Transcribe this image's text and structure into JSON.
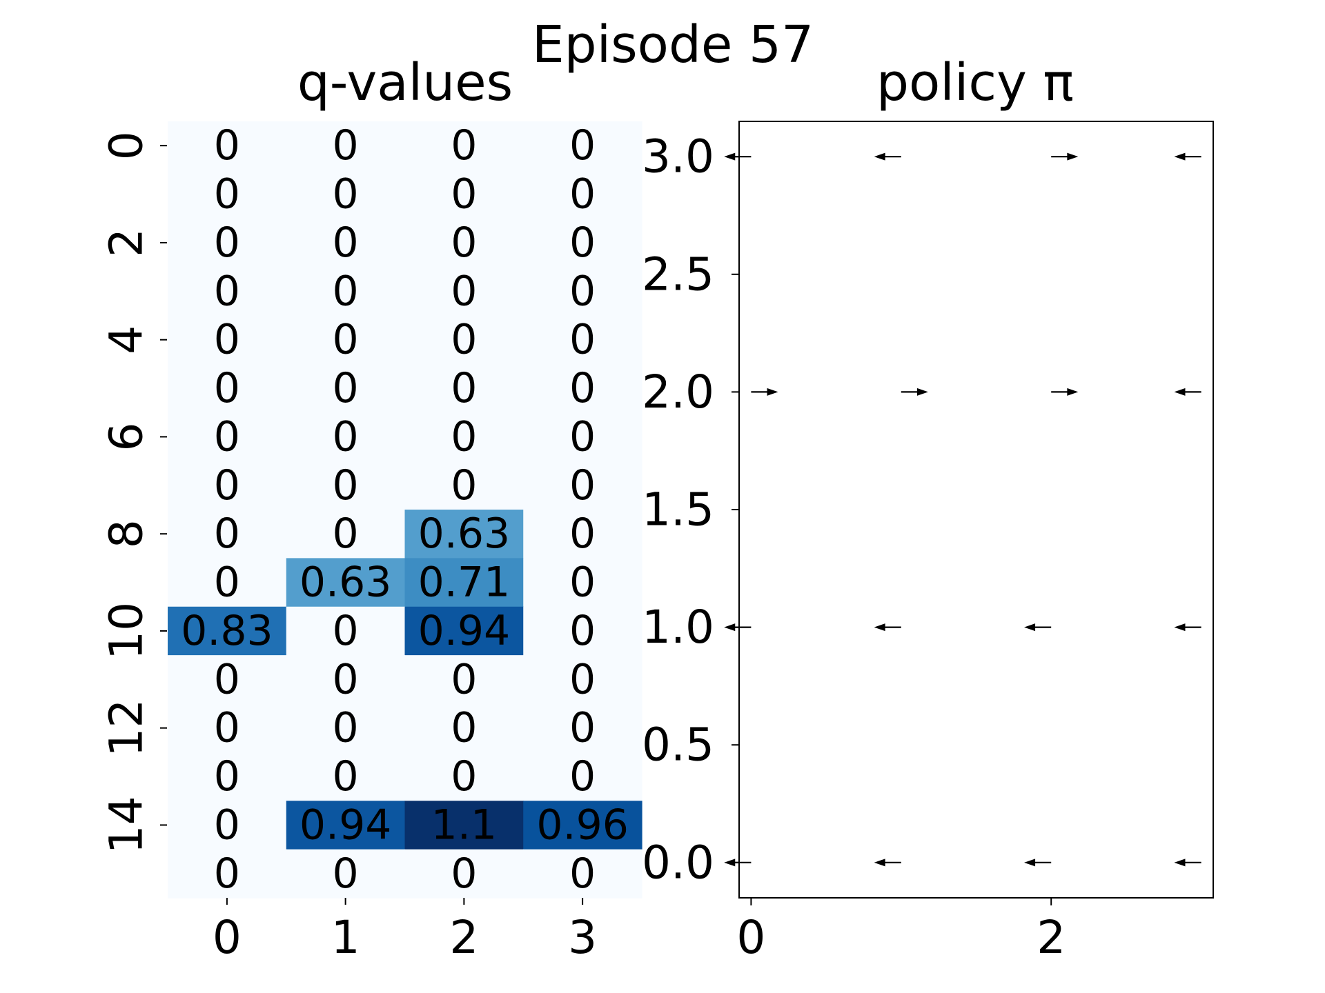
{
  "figure": {
    "suptitle": "Episode 57"
  },
  "chart_data": [
    {
      "type": "heatmap",
      "title": "q-values",
      "x_tick_labels": [
        "0",
        "1",
        "2",
        "3"
      ],
      "y_tick_labels": [
        "0",
        "2",
        "4",
        "6",
        "8",
        "10",
        "12",
        "14"
      ],
      "rows": 16,
      "cols": 4,
      "vmin": 0,
      "vmax": 1.1,
      "cmap": "Blues",
      "values": [
        [
          0,
          0,
          0,
          0
        ],
        [
          0,
          0,
          0,
          0
        ],
        [
          0,
          0,
          0,
          0
        ],
        [
          0,
          0,
          0,
          0
        ],
        [
          0,
          0,
          0,
          0
        ],
        [
          0,
          0,
          0,
          0
        ],
        [
          0,
          0,
          0,
          0
        ],
        [
          0,
          0,
          0,
          0
        ],
        [
          0,
          0,
          0.63,
          0
        ],
        [
          0,
          0.63,
          0.71,
          0
        ],
        [
          0.83,
          0,
          0.94,
          0
        ],
        [
          0,
          0,
          0,
          0
        ],
        [
          0,
          0,
          0,
          0
        ],
        [
          0,
          0,
          0,
          0
        ],
        [
          0,
          0.94,
          1.1,
          0.96
        ],
        [
          0,
          0,
          0,
          0
        ]
      ],
      "annotations": [
        [
          "0",
          "0",
          "0",
          "0"
        ],
        [
          "0",
          "0",
          "0",
          "0"
        ],
        [
          "0",
          "0",
          "0",
          "0"
        ],
        [
          "0",
          "0",
          "0",
          "0"
        ],
        [
          "0",
          "0",
          "0",
          "0"
        ],
        [
          "0",
          "0",
          "0",
          "0"
        ],
        [
          "0",
          "0",
          "0",
          "0"
        ],
        [
          "0",
          "0",
          "0",
          "0"
        ],
        [
          "0",
          "0",
          "0.63",
          "0"
        ],
        [
          "0",
          "0.63",
          "0.71",
          "0"
        ],
        [
          "0.83",
          "0",
          "0.94",
          "0"
        ],
        [
          "0",
          "0",
          "0",
          "0"
        ],
        [
          "0",
          "0",
          "0",
          "0"
        ],
        [
          "0",
          "0",
          "0",
          "0"
        ],
        [
          "0",
          "0.94",
          "1.1",
          "0.96"
        ],
        [
          "0",
          "0",
          "0",
          "0"
        ]
      ]
    },
    {
      "type": "quiver",
      "title": "policy π",
      "xlim": [
        -0.08,
        3.08
      ],
      "ylim": [
        -0.15,
        3.15
      ],
      "x_ticks": [
        0,
        2
      ],
      "x_tick_labels": [
        "0",
        "2"
      ],
      "y_ticks": [
        0.0,
        0.5,
        1.0,
        1.5,
        2.0,
        2.5,
        3.0
      ],
      "y_tick_labels": [
        "0.0",
        "0.5",
        "1.0",
        "1.5",
        "2.0",
        "2.5",
        "3.0"
      ],
      "arrows": [
        {
          "x": 0,
          "y": 3,
          "dir": "left"
        },
        {
          "x": 1,
          "y": 3,
          "dir": "left"
        },
        {
          "x": 2,
          "y": 3,
          "dir": "right"
        },
        {
          "x": 3,
          "y": 3,
          "dir": "left"
        },
        {
          "x": 0,
          "y": 2,
          "dir": "right"
        },
        {
          "x": 1,
          "y": 2,
          "dir": "right"
        },
        {
          "x": 2,
          "y": 2,
          "dir": "right"
        },
        {
          "x": 3,
          "y": 2,
          "dir": "left"
        },
        {
          "x": 0,
          "y": 1,
          "dir": "left"
        },
        {
          "x": 1,
          "y": 1,
          "dir": "left"
        },
        {
          "x": 2,
          "y": 1,
          "dir": "left"
        },
        {
          "x": 3,
          "y": 1,
          "dir": "left"
        },
        {
          "x": 0,
          "y": 0,
          "dir": "left"
        },
        {
          "x": 1,
          "y": 0,
          "dir": "left"
        },
        {
          "x": 2,
          "y": 0,
          "dir": "left"
        },
        {
          "x": 3,
          "y": 0,
          "dir": "left"
        }
      ]
    }
  ]
}
